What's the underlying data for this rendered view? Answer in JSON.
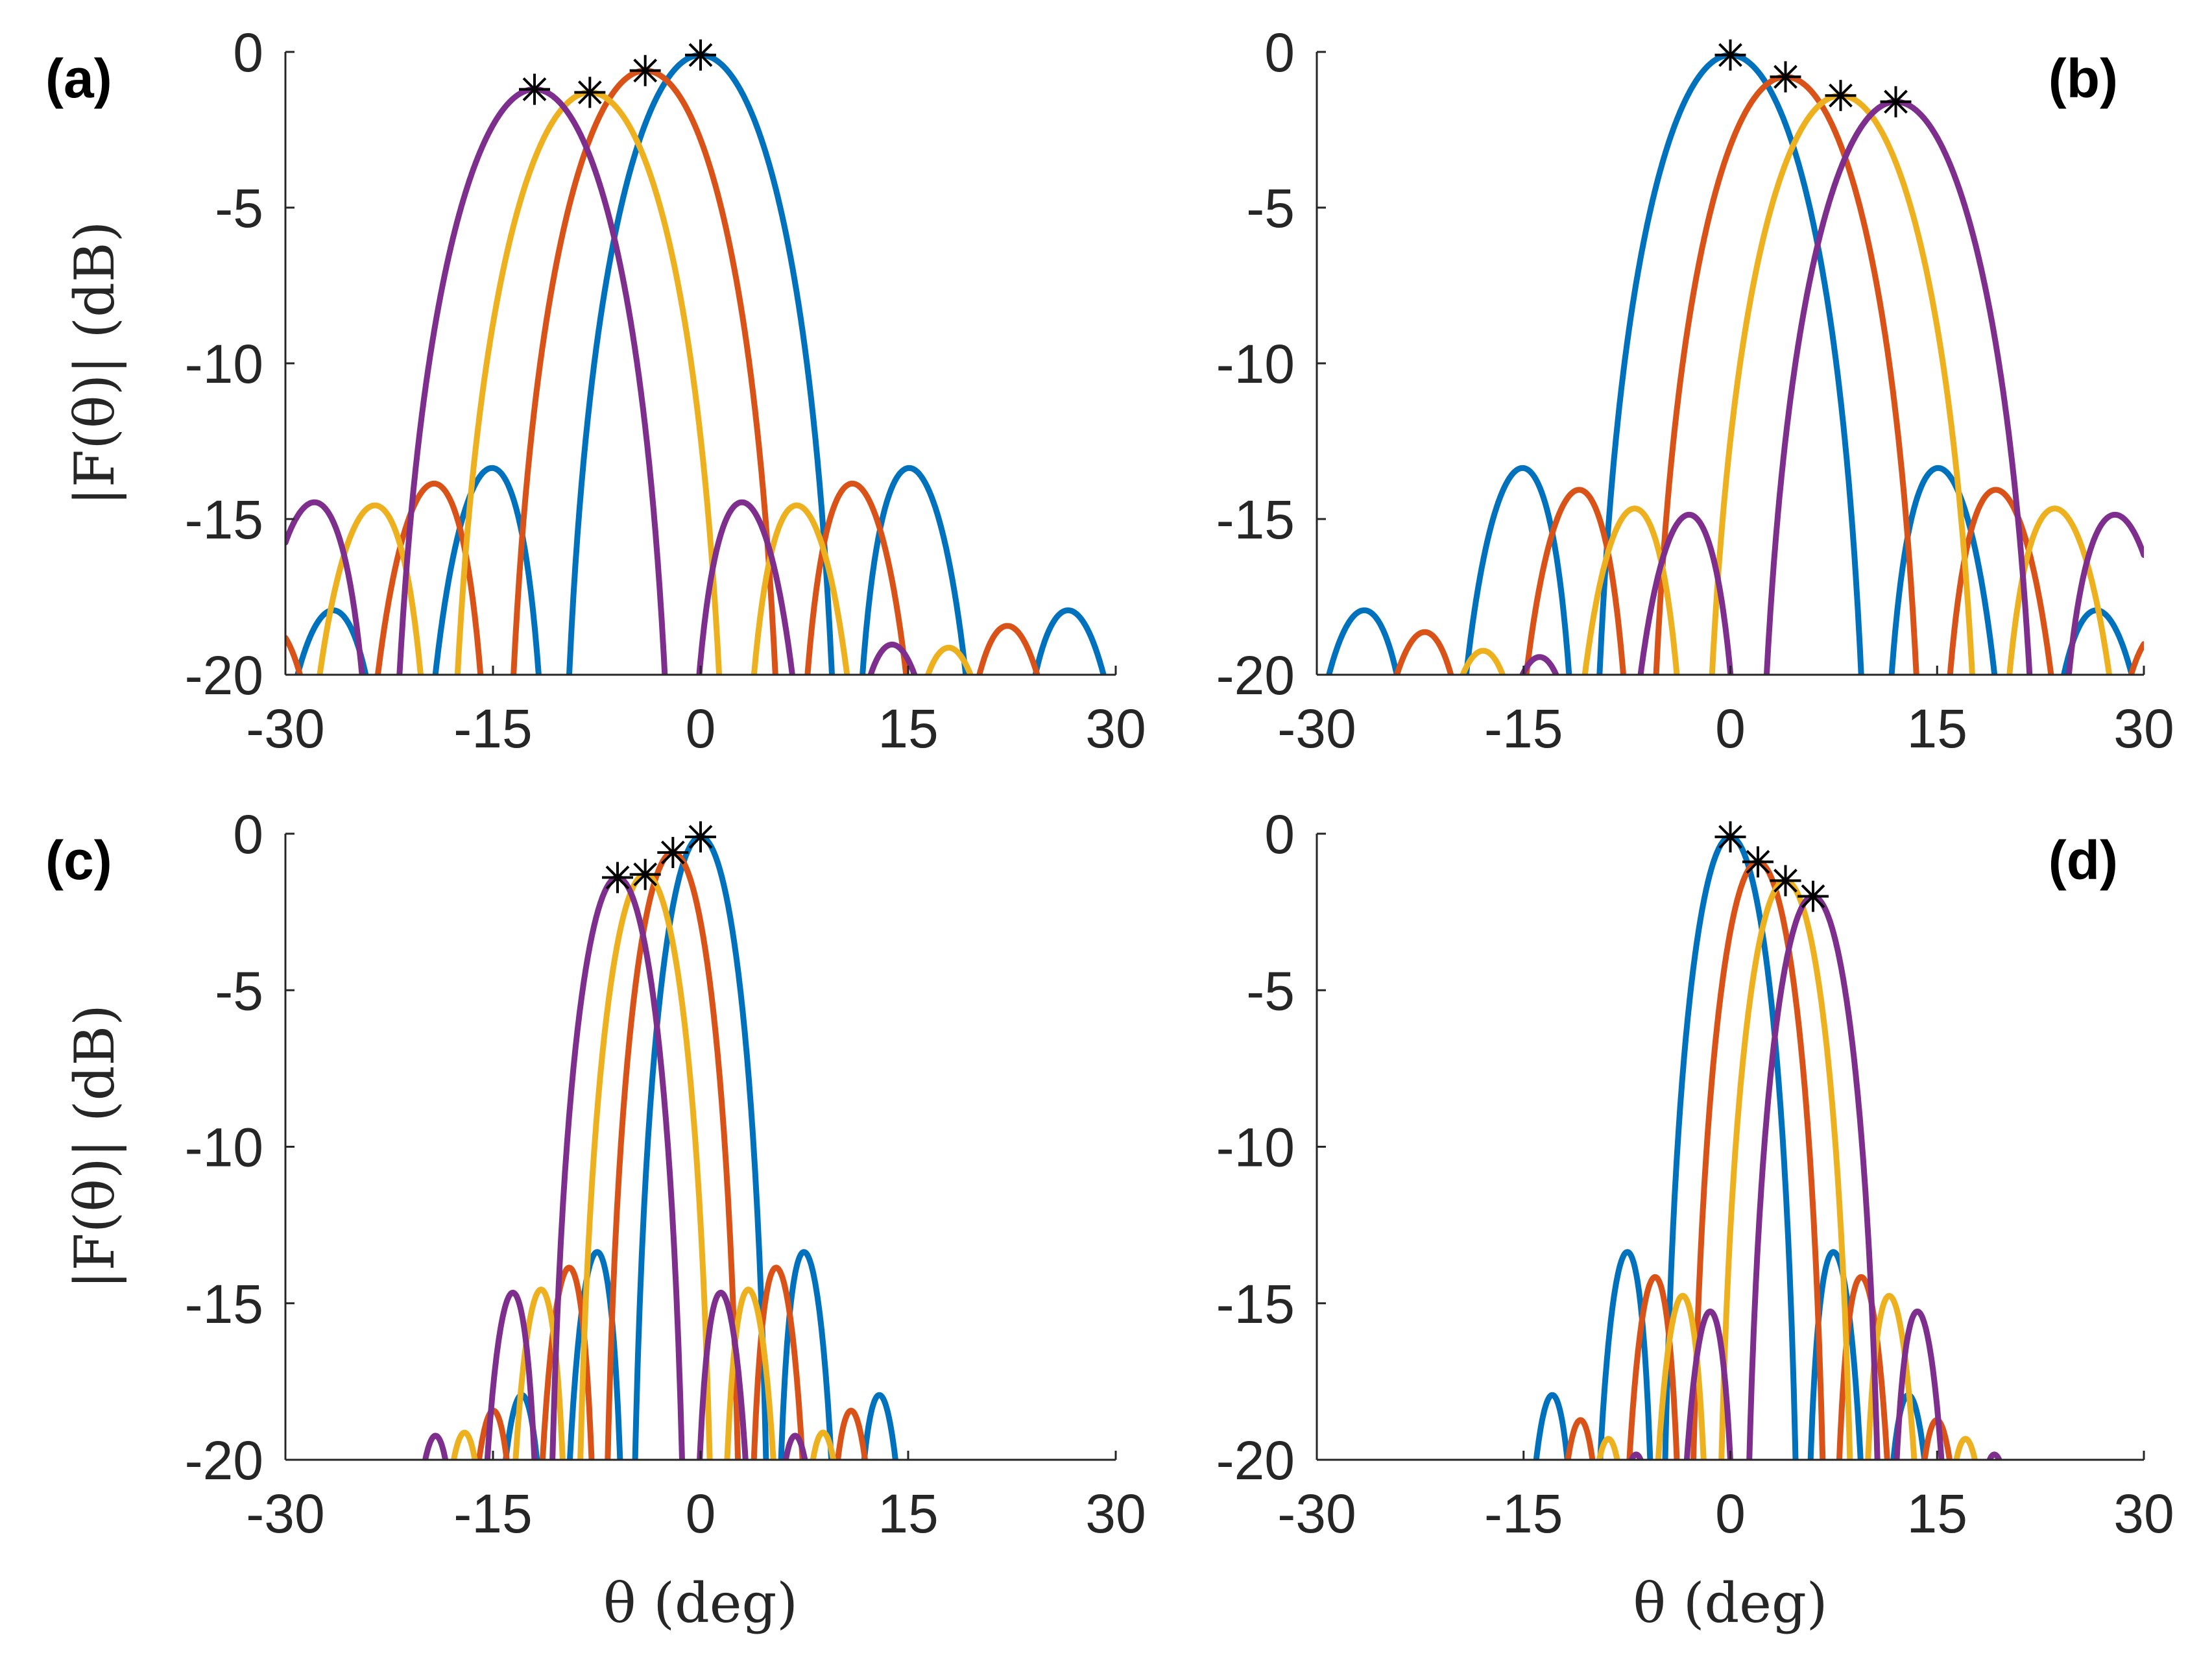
{
  "chart_data": [
    {
      "type": "line",
      "panel_label": "(a)",
      "label_position": "top-left",
      "xlim": [
        -30,
        30
      ],
      "ylim": [
        -20,
        0
      ],
      "xticks": [
        "-30",
        "-15",
        "0",
        "15",
        "30"
      ],
      "yticks": [
        "0",
        "-5",
        "-10",
        "-15",
        "-20"
      ],
      "xlabel": "",
      "ylabel": "|F(θ)| (dB)",
      "beamwidth_factor": 1.0,
      "series": [
        {
          "color": "#0072BD",
          "peak_angle": 0,
          "peak_db": -0.1
        },
        {
          "color": "#D95319",
          "peak_angle": -4,
          "peak_db": -0.6
        },
        {
          "color": "#EDB120",
          "peak_angle": -8,
          "peak_db": -1.3
        },
        {
          "color": "#7E2F8E",
          "peak_angle": -12,
          "peak_db": -1.2
        }
      ]
    },
    {
      "type": "line",
      "panel_label": "(b)",
      "label_position": "top-right",
      "xlim": [
        -30,
        30
      ],
      "ylim": [
        -20,
        0
      ],
      "xticks": [
        "-30",
        "-15",
        "0",
        "15",
        "30"
      ],
      "yticks": [
        "0",
        "-5",
        "-10",
        "-15",
        "-20"
      ],
      "xlabel": "",
      "ylabel": "",
      "beamwidth_factor": 1.0,
      "series": [
        {
          "color": "#0072BD",
          "peak_angle": 0,
          "peak_db": -0.1
        },
        {
          "color": "#D95319",
          "peak_angle": 4,
          "peak_db": -0.8
        },
        {
          "color": "#EDB120",
          "peak_angle": 8,
          "peak_db": -1.4
        },
        {
          "color": "#7E2F8E",
          "peak_angle": 12,
          "peak_db": -1.6
        }
      ]
    },
    {
      "type": "line",
      "panel_label": "(c)",
      "label_position": "top-left",
      "xlim": [
        -30,
        30
      ],
      "ylim": [
        -20,
        0
      ],
      "xticks": [
        "-30",
        "-15",
        "0",
        "15",
        "30"
      ],
      "yticks": [
        "0",
        "-5",
        "-10",
        "-15",
        "-20"
      ],
      "xlabel": "θ (deg)",
      "ylabel": "|F(θ)| (dB)",
      "beamwidth_factor": 0.5,
      "series": [
        {
          "color": "#0072BD",
          "peak_angle": 0,
          "peak_db": -0.1
        },
        {
          "color": "#D95319",
          "peak_angle": -2,
          "peak_db": -0.6
        },
        {
          "color": "#EDB120",
          "peak_angle": -4,
          "peak_db": -1.3
        },
        {
          "color": "#7E2F8E",
          "peak_angle": -6,
          "peak_db": -1.4
        }
      ]
    },
    {
      "type": "line",
      "panel_label": "(d)",
      "label_position": "top-right",
      "xlim": [
        -30,
        30
      ],
      "ylim": [
        -20,
        0
      ],
      "xticks": [
        "-30",
        "-15",
        "0",
        "15",
        "30"
      ],
      "yticks": [
        "0",
        "-5",
        "-10",
        "-15",
        "-20"
      ],
      "xlabel": "θ (deg)",
      "ylabel": "",
      "beamwidth_factor": 0.5,
      "series": [
        {
          "color": "#0072BD",
          "peak_angle": 0,
          "peak_db": -0.1
        },
        {
          "color": "#D95319",
          "peak_angle": 2,
          "peak_db": -0.9
        },
        {
          "color": "#EDB120",
          "peak_angle": 4,
          "peak_db": -1.5
        },
        {
          "color": "#7E2F8E",
          "peak_angle": 6,
          "peak_db": -2.0
        }
      ]
    }
  ]
}
